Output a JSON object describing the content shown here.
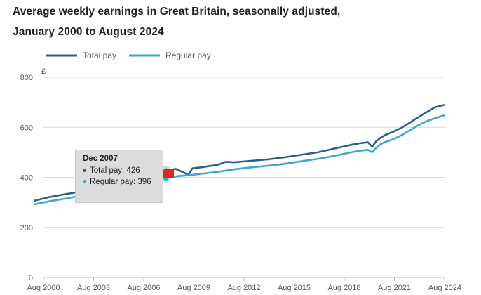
{
  "title_line1": "Average weekly earnings in Great Britain, seasonally adjusted,",
  "title_line2": "January 2000 to August 2024",
  "colors": {
    "total": "#2e5f8a",
    "regular": "#3aa7d4",
    "grid": "#d9d9d9",
    "arrow": "#e3261c"
  },
  "tooltip": {
    "date": "Dec 2007",
    "total_label": "Total pay: 426",
    "regular_label": "Regular pay: 396"
  },
  "chart_data": {
    "type": "line",
    "title": "Average weekly earnings in Great Britain, seasonally adjusted, January 2000 to August 2024",
    "ylabel": "£",
    "xlabel": "",
    "ylim": [
      0,
      800
    ],
    "yticks": [
      0,
      200,
      400,
      600,
      800
    ],
    "xlim": [
      2000.583,
      2024.583
    ],
    "xticks": [
      {
        "x": 2000.583,
        "label": "Aug 2000"
      },
      {
        "x": 2003.583,
        "label": "Aug 2003"
      },
      {
        "x": 2006.583,
        "label": "Aug 2006"
      },
      {
        "x": 2009.583,
        "label": "Aug 2009"
      },
      {
        "x": 2012.583,
        "label": "Aug 2012"
      },
      {
        "x": 2015.583,
        "label": "Aug 2015"
      },
      {
        "x": 2018.583,
        "label": "Aug 2018"
      },
      {
        "x": 2021.583,
        "label": "Aug 2021"
      },
      {
        "x": 2024.583,
        "label": "Aug 2024"
      }
    ],
    "grid": true,
    "legend_position": "top-left",
    "series": [
      {
        "name": "Total pay",
        "x": [
          2000.0,
          2000.5,
          2001.0,
          2002.0,
          2003.0,
          2004.0,
          2005.0,
          2006.0,
          2007.0,
          2007.917,
          2008.5,
          2009.25,
          2009.5,
          2010.0,
          2011.0,
          2011.5,
          2012.0,
          2013.0,
          2014.0,
          2015.0,
          2016.0,
          2017.0,
          2018.0,
          2019.0,
          2019.5,
          2020.0,
          2020.25,
          2020.5,
          2020.75,
          2021.0,
          2021.5,
          2022.0,
          2022.5,
          2023.0,
          2023.5,
          2024.0,
          2024.583
        ],
        "y": [
          306,
          314,
          322,
          334,
          344,
          360,
          374,
          392,
          410,
          426,
          434,
          410,
          436,
          440,
          450,
          462,
          460,
          466,
          472,
          480,
          490,
          500,
          515,
          530,
          536,
          540,
          522,
          545,
          558,
          568,
          582,
          598,
          618,
          640,
          660,
          680,
          690
        ]
      },
      {
        "name": "Regular pay",
        "x": [
          2000.0,
          2000.5,
          2001.0,
          2002.0,
          2003.0,
          2004.0,
          2005.0,
          2006.0,
          2007.0,
          2007.917,
          2008.5,
          2009.5,
          2010.0,
          2011.0,
          2012.0,
          2013.0,
          2014.0,
          2015.0,
          2016.0,
          2017.0,
          2018.0,
          2019.0,
          2019.5,
          2020.0,
          2020.25,
          2020.5,
          2020.75,
          2021.0,
          2021.5,
          2022.0,
          2022.5,
          2023.0,
          2023.5,
          2024.0,
          2024.583
        ],
        "y": [
          292,
          298,
          305,
          316,
          328,
          342,
          356,
          372,
          386,
          396,
          404,
          410,
          414,
          422,
          432,
          440,
          446,
          454,
          464,
          474,
          486,
          500,
          506,
          510,
          500,
          518,
          532,
          540,
          552,
          568,
          588,
          608,
          624,
          636,
          648
        ]
      }
    ]
  }
}
